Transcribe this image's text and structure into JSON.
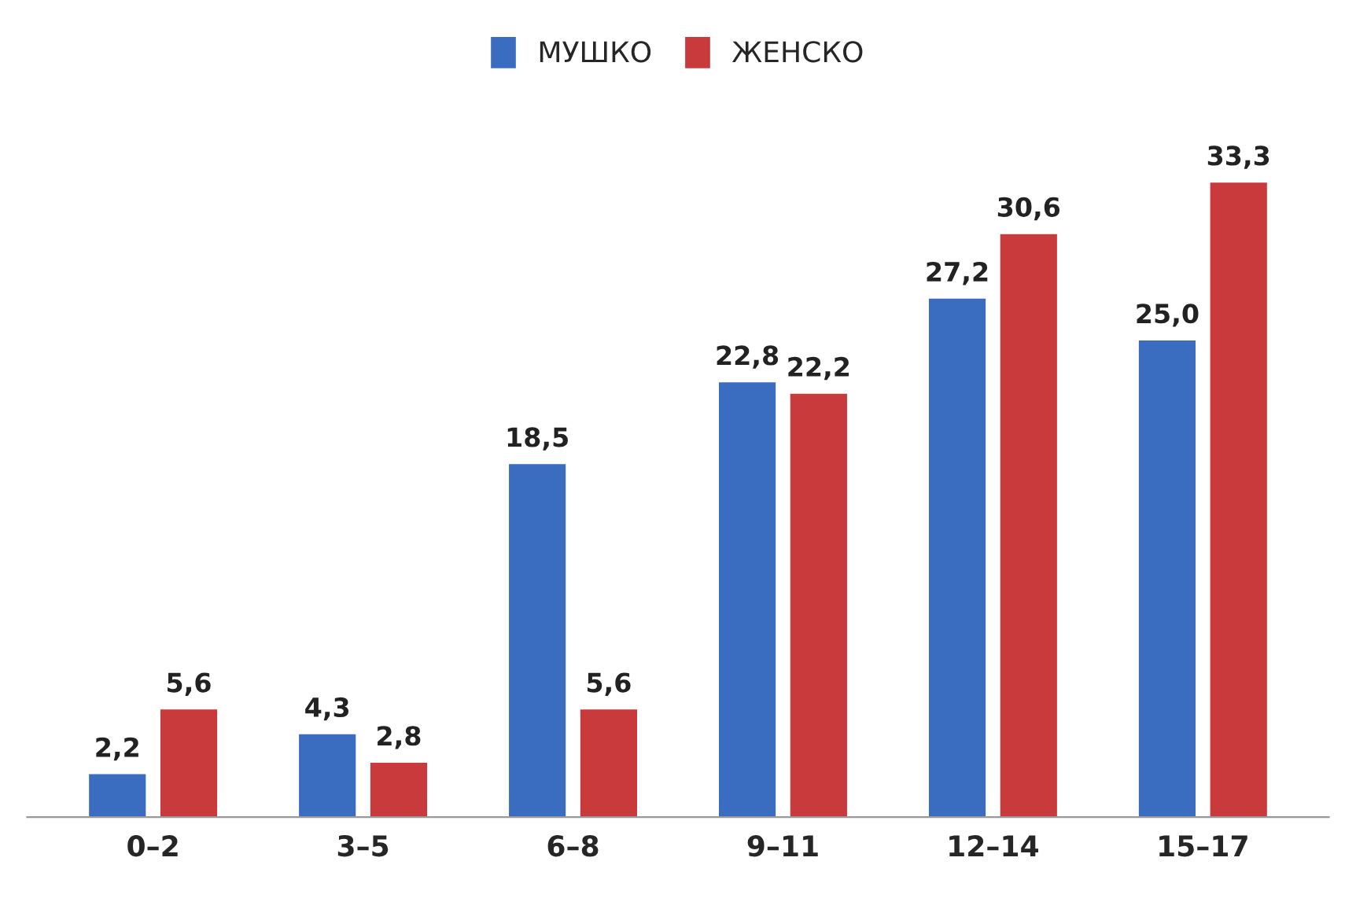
{
  "chart_data": {
    "type": "bar",
    "categories": [
      "0–2",
      "3–5",
      "6–8",
      "9–11",
      "12–14",
      "15–17"
    ],
    "series": [
      {
        "name": "МУШКО",
        "color": "#3a6cc0",
        "values": [
          2.2,
          4.3,
          18.5,
          22.8,
          27.2,
          25.0
        ],
        "value_labels": [
          "2,2",
          "4,3",
          "18,5",
          "22,8",
          "27,2",
          "25,0"
        ]
      },
      {
        "name": "ЖЕНСКО",
        "color": "#c83a3c",
        "values": [
          5.6,
          2.8,
          5.6,
          22.2,
          30.6,
          33.3
        ],
        "value_labels": [
          "5,6",
          "2,8",
          "5,6",
          "22,2",
          "30,6",
          "33,3"
        ]
      }
    ],
    "legend": "top",
    "grid": false,
    "tick_labels": "x"
  }
}
